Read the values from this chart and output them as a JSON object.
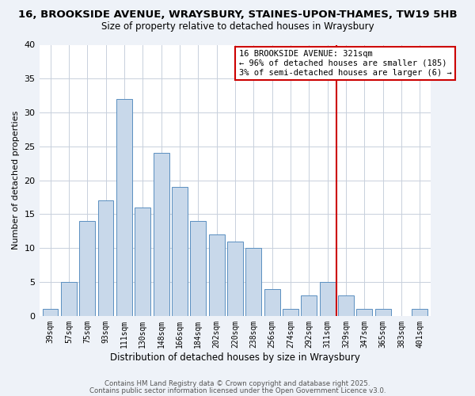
{
  "title_line1": "16, BROOKSIDE AVENUE, WRAYSBURY, STAINES-UPON-THAMES, TW19 5HB",
  "title_line2": "Size of property relative to detached houses in Wraysbury",
  "xlabel": "Distribution of detached houses by size in Wraysbury",
  "ylabel": "Number of detached properties",
  "bar_labels": [
    "39sqm",
    "57sqm",
    "75sqm",
    "93sqm",
    "111sqm",
    "130sqm",
    "148sqm",
    "166sqm",
    "184sqm",
    "202sqm",
    "220sqm",
    "238sqm",
    "256sqm",
    "274sqm",
    "292sqm",
    "311sqm",
    "329sqm",
    "347sqm",
    "365sqm",
    "383sqm",
    "401sqm"
  ],
  "bar_heights": [
    1,
    5,
    14,
    17,
    32,
    16,
    24,
    19,
    14,
    12,
    11,
    10,
    4,
    1,
    3,
    5,
    3,
    1,
    1,
    0,
    1
  ],
  "bar_color": "#c8d8ea",
  "bar_edge_color": "#5a8fc0",
  "vline_x": 15.5,
  "vline_color": "#cc0000",
  "annotation_title": "16 BROOKSIDE AVENUE: 321sqm",
  "annotation_line2": "← 96% of detached houses are smaller (185)",
  "annotation_line3": "3% of semi-detached houses are larger (6) →",
  "annotation_box_color": "#ffffff",
  "annotation_box_edge": "#cc0000",
  "ylim": [
    0,
    40
  ],
  "yticks": [
    0,
    5,
    10,
    15,
    20,
    25,
    30,
    35,
    40
  ],
  "grid_color": "#c8d0dc",
  "plot_bg_color": "#ffffff",
  "fig_bg_color": "#eef2f8",
  "footer_line1": "Contains HM Land Registry data © Crown copyright and database right 2025.",
  "footer_line2": "Contains public sector information licensed under the Open Government Licence v3.0."
}
